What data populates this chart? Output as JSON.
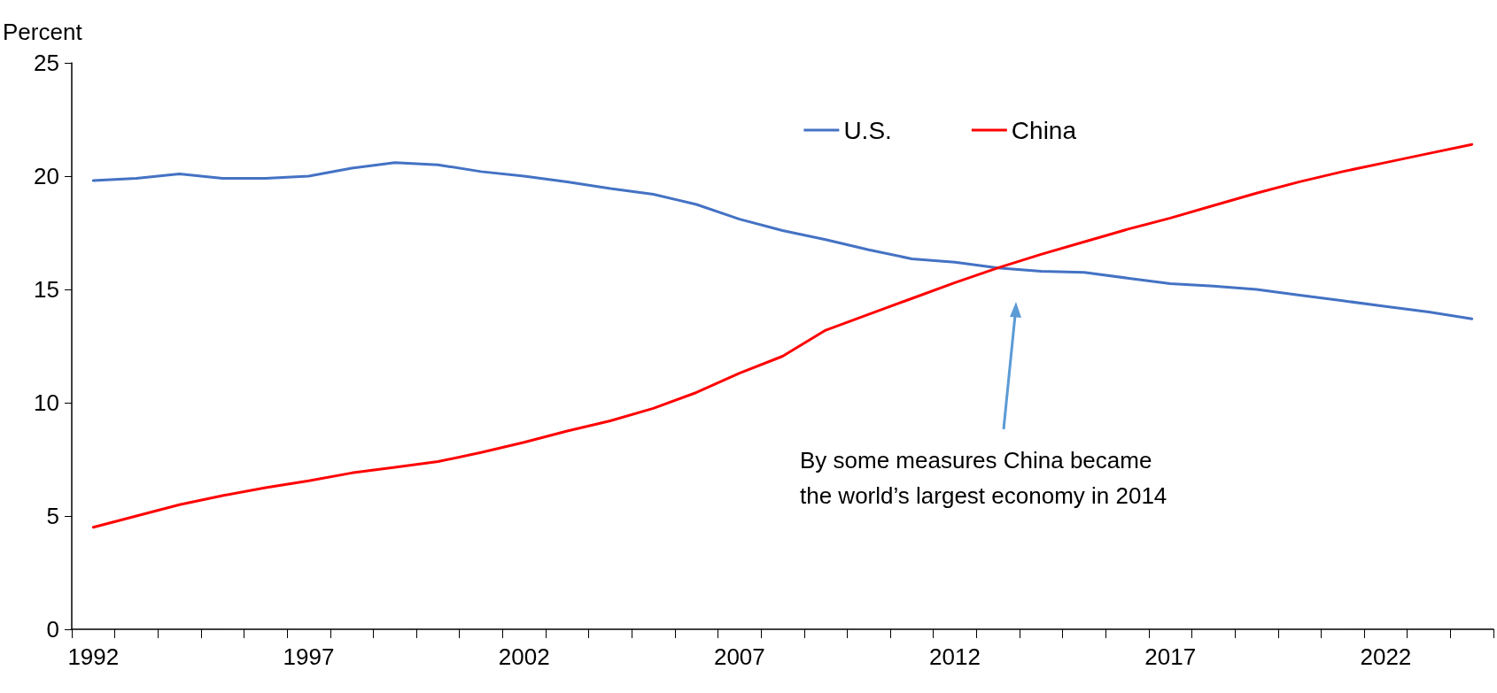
{
  "chart_data": {
    "type": "line",
    "ylabel": "Percent",
    "categories": [
      "1992",
      null,
      null,
      null,
      null,
      "1997",
      null,
      null,
      null,
      null,
      "2002",
      null,
      null,
      null,
      null,
      "2007",
      null,
      null,
      null,
      null,
      "2012",
      null,
      null,
      null,
      null,
      "2017",
      null,
      null,
      null,
      null,
      "2022",
      null,
      null
    ],
    "series": [
      {
        "name": "U.S.",
        "color": "#4472c4",
        "values": [
          19.8,
          19.9,
          20.1,
          19.9,
          19.9,
          20.0,
          20.35,
          20.6,
          20.5,
          20.2,
          20.0,
          19.75,
          19.45,
          19.2,
          18.75,
          18.1,
          17.6,
          17.2,
          16.75,
          16.35,
          16.2,
          15.95,
          15.8,
          15.75,
          15.5,
          15.25,
          15.15,
          15.0,
          14.75,
          14.5,
          14.25,
          14.0,
          13.7
        ]
      },
      {
        "name": "China",
        "color": "#ff0000",
        "values": [
          4.5,
          5.0,
          5.5,
          5.9,
          6.25,
          6.55,
          6.9,
          7.15,
          7.4,
          7.8,
          8.25,
          8.75,
          9.2,
          9.75,
          10.45,
          11.3,
          12.05,
          13.2,
          13.9,
          14.6,
          15.3,
          15.95,
          16.55,
          17.1,
          17.65,
          18.15,
          18.7,
          19.25,
          19.75,
          20.2,
          20.6,
          21.0,
          21.4
        ]
      }
    ],
    "ylim": [
      0,
      25
    ],
    "yticks": [
      0,
      5,
      10,
      15,
      20,
      25
    ],
    "legend": "top right",
    "marker": "none",
    "annotations": [
      "By some measures China became\nthe world’s largest economy in 2014"
    ]
  }
}
